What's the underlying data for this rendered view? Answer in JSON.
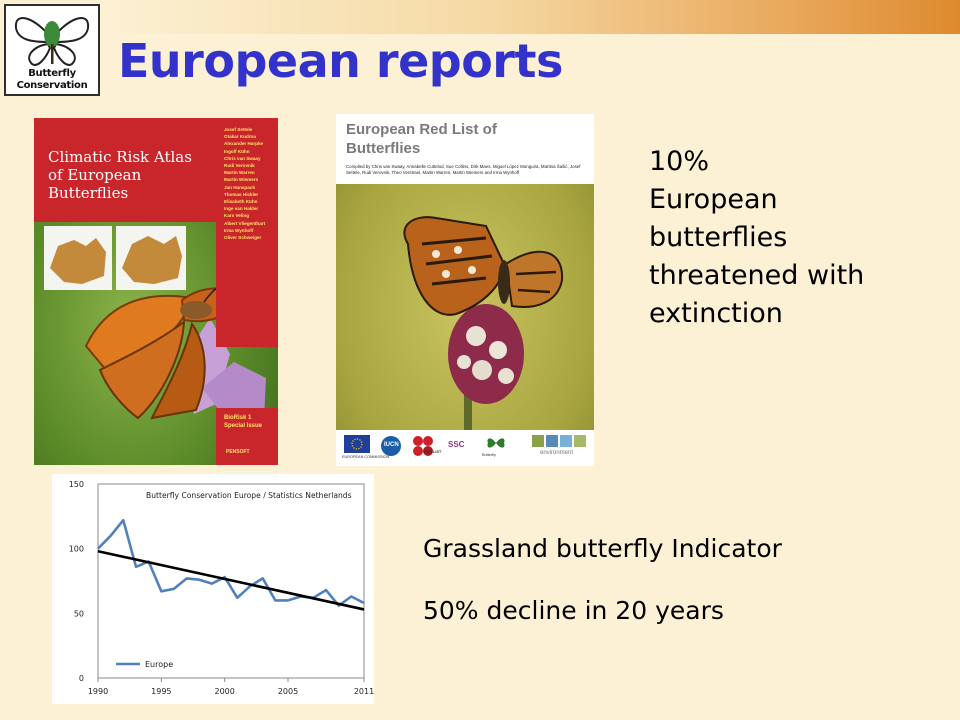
{
  "slide": {
    "title": "European reports",
    "logo": {
      "line1": "Butterfly",
      "line2": "Conservation"
    },
    "statement": [
      "10%",
      "European",
      "butterflies",
      "threatened with",
      "extinction"
    ],
    "indicator_label": "Grassland butterfly Indicator",
    "indicator_stat": "50% decline in 20 years"
  },
  "cover_left": {
    "title_line1": "Climatic Risk Atlas",
    "title_line2": "of European Butterflies",
    "authors": [
      "Josef Settele",
      "Otakar Kudrna",
      "Alexander Harpke",
      "Ingolf Kühn",
      "Chris van Swaay",
      "Rudi Verovnik",
      "Martin Warren",
      "Martin Wiemers",
      "Jan Hanspach",
      "Thomas Hickler",
      "Elisabeth Kühn",
      "Inge van Halder",
      "Kars Veling",
      "Albert Vliegenthart",
      "Irma Wynhoff",
      "Oliver Schweiger"
    ],
    "series_line1": "BioRisk 1",
    "series_line2": "Special Issue",
    "publisher": "PENSOFT",
    "colors": {
      "red": "#c8262b",
      "text_yellow": "#ffe36a"
    }
  },
  "cover_right": {
    "title_line1": "European Red List of",
    "title_line2": "Butterflies",
    "credits": "Compiled by Chris van Swaay, Annabelle Cuttelod, Sue Collins, Dirk Maes, Miguel López Munguira, Martina Šašić, Josef Settele, Rudi Verovnik, Theo Verstrael, Martin Warren, Martin Wiemers and Irma Wynhoff",
    "footer_logos": [
      "EUROPEAN COMMISSION",
      "IUCN",
      "RED LIST",
      "SSC",
      "Butterfly",
      "environment"
    ]
  },
  "chart_data": {
    "type": "line",
    "title": "Butterfly Conservation Europe / Statistics Netherlands",
    "xlabel": "",
    "ylabel": "",
    "ylim": [
      0,
      150
    ],
    "y_ticks": [
      "0",
      "50",
      "100",
      "150"
    ],
    "x_ticks": [
      "1990",
      "1995",
      "2000",
      "2005",
      "2011"
    ],
    "x_tick_values": [
      1990,
      1995,
      2000,
      2005,
      2011
    ],
    "xlim": [
      1990,
      2011
    ],
    "legend": "bottom-left",
    "grid": false,
    "series": [
      {
        "name": "Europe",
        "color": "#4f81bd",
        "x": [
          1990,
          1991,
          1992,
          1993,
          1994,
          1995,
          1996,
          1997,
          1998,
          1999,
          2000,
          2001,
          2002,
          2003,
          2004,
          2005,
          2006,
          2007,
          2008,
          2009,
          2010,
          2011
        ],
        "values": [
          100,
          110,
          122,
          86,
          90,
          67,
          69,
          77,
          76,
          73,
          78,
          62,
          71,
          77,
          60,
          60,
          63,
          62,
          68,
          56,
          63,
          58
        ]
      }
    ],
    "trend": {
      "color": "#000000",
      "x": [
        1990,
        2011
      ],
      "values": [
        98,
        53
      ]
    }
  }
}
